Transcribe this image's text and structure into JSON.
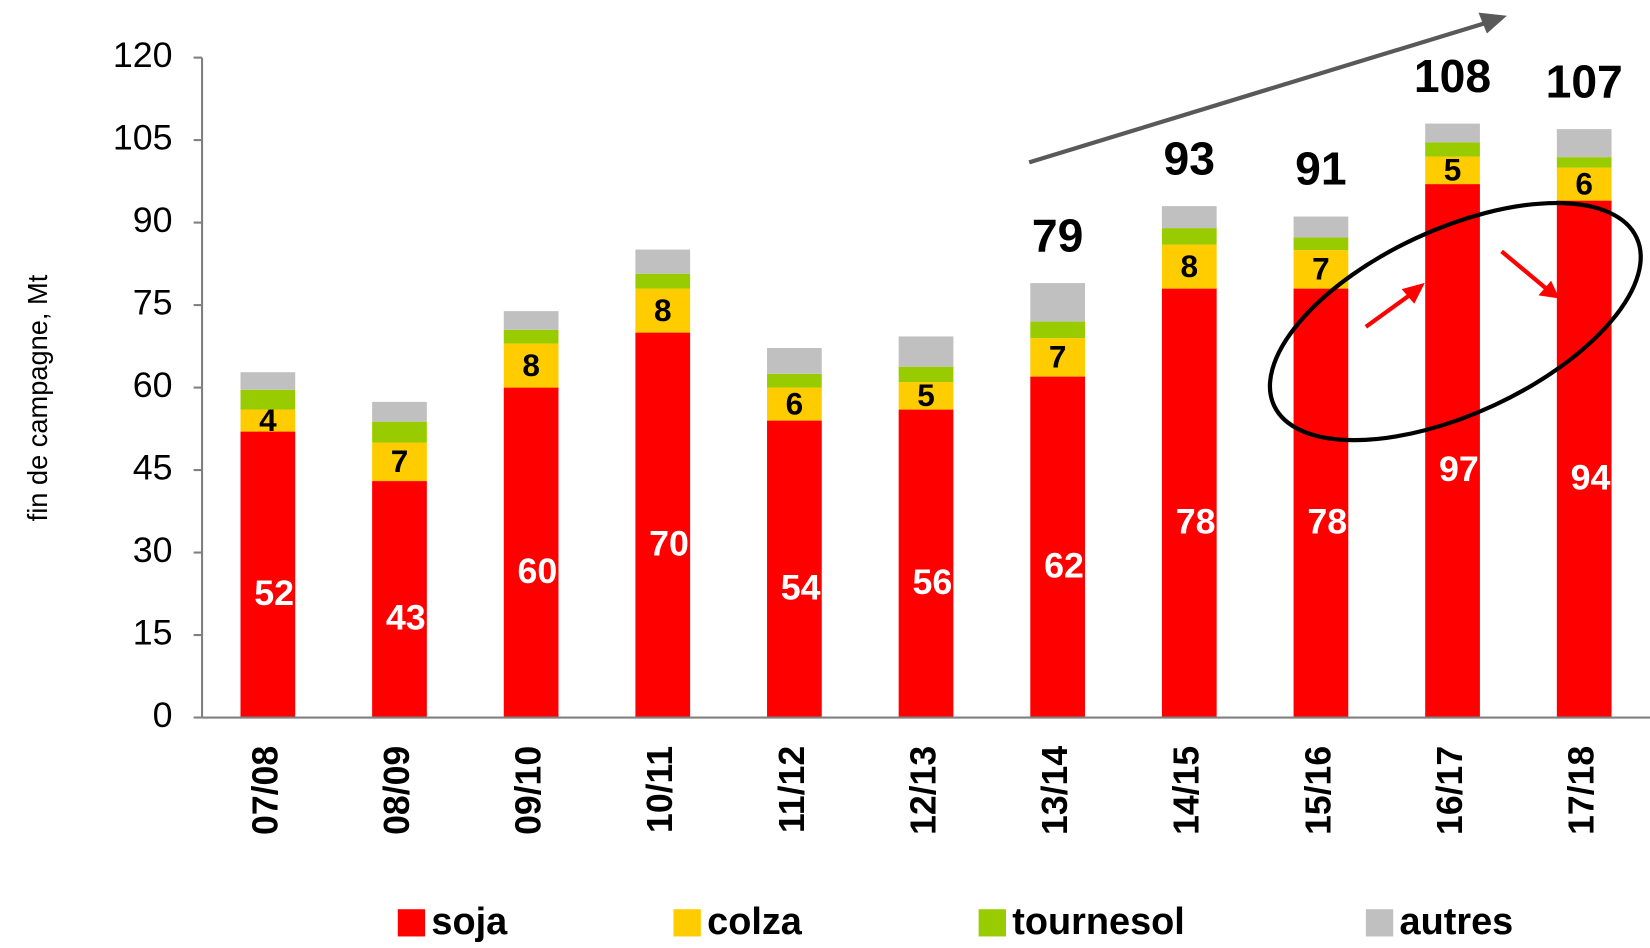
{
  "chart_data": {
    "type": "stacked_bar",
    "y_axis_label": "fin de campagne, Mt",
    "categories": [
      "07/08",
      "08/09",
      "09/10",
      "10/11",
      "11/12",
      "12/13",
      "13/14",
      "14/15",
      "15/16",
      "16/17",
      "17/18"
    ],
    "series": [
      {
        "name": "soja",
        "color": "#ff0000",
        "values": [
          52,
          43,
          60,
          70,
          54,
          56,
          62,
          78,
          78,
          97,
          94
        ]
      },
      {
        "name": "colza",
        "color": "#ffcc00",
        "values": [
          4,
          7,
          8,
          8,
          6,
          5,
          7,
          8,
          7,
          5,
          6
        ]
      },
      {
        "name": "tournesol",
        "color": "#99cc00",
        "values": [
          3.6,
          3.8,
          2.5,
          2.7,
          2.5,
          2.8,
          3,
          3,
          2.3,
          2.6,
          1.9
        ]
      },
      {
        "name": "autres",
        "color": "#c0c0c0",
        "values": [
          3.2,
          3.6,
          3.4,
          4.4,
          4.7,
          5.5,
          7,
          4,
          3.8,
          3.4,
          5.1
        ]
      }
    ],
    "totals": [
      null,
      null,
      null,
      null,
      null,
      null,
      79,
      93,
      91,
      108,
      107
    ],
    "ylim": [
      0,
      120
    ],
    "yticks": [
      0,
      15,
      30,
      45,
      60,
      75,
      90,
      105,
      120
    ],
    "grid": false,
    "legend": "bottom"
  }
}
